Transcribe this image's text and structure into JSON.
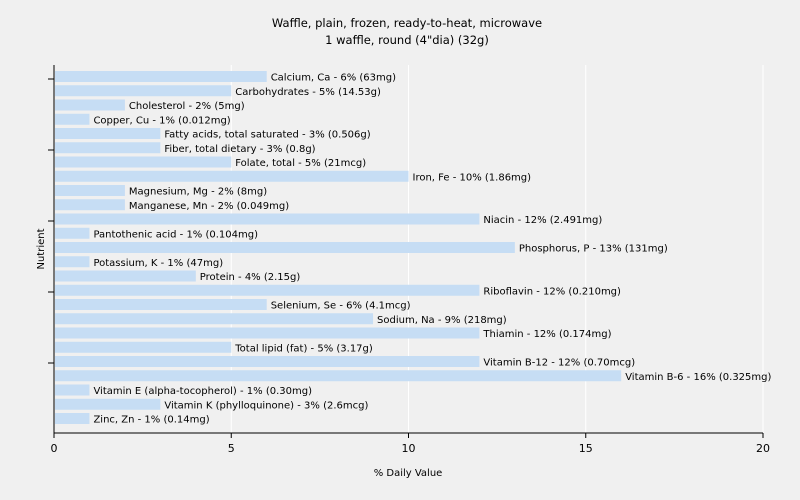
{
  "chart_data": {
    "type": "bar",
    "orientation": "horizontal",
    "title": "Waffle, plain, frozen, ready-to-heat, microwave",
    "subtitle": "1 waffle, round (4\"dia) (32g)",
    "xlabel": "% Daily Value",
    "ylabel": "Nutrient",
    "xlim": [
      0,
      20
    ],
    "xticks": [
      "0",
      "5",
      "10",
      "15",
      "20"
    ],
    "grid": true,
    "bar_color": "#c6ddf4",
    "categories": [
      "Calcium, Ca",
      "Carbohydrates",
      "Cholesterol",
      "Copper, Cu",
      "Fatty acids, total saturated",
      "Fiber, total dietary",
      "Folate, total",
      "Iron, Fe",
      "Magnesium, Mg",
      "Manganese, Mn",
      "Niacin",
      "Pantothenic acid",
      "Phosphorus, P",
      "Potassium, K",
      "Protein",
      "Riboflavin",
      "Selenium, Se",
      "Sodium, Na",
      "Thiamin",
      "Total lipid (fat)",
      "Vitamin B-12",
      "Vitamin B-6",
      "Vitamin E (alpha-tocopherol)",
      "Vitamin K (phylloquinone)",
      "Zinc, Zn"
    ],
    "values": [
      6,
      5,
      2,
      1,
      3,
      3,
      5,
      10,
      2,
      2,
      12,
      1,
      13,
      1,
      4,
      12,
      6,
      9,
      12,
      5,
      12,
      16,
      1,
      3,
      1
    ],
    "labels": [
      "Calcium, Ca - 6% (63mg)",
      "Carbohydrates - 5% (14.53g)",
      "Cholesterol - 2% (5mg)",
      "Copper, Cu - 1% (0.012mg)",
      "Fatty acids, total saturated - 3% (0.506g)",
      "Fiber, total dietary - 3% (0.8g)",
      "Folate, total - 5% (21mcg)",
      "Iron, Fe - 10% (1.86mg)",
      "Magnesium, Mg - 2% (8mg)",
      "Manganese, Mn - 2% (0.049mg)",
      "Niacin - 12% (2.491mg)",
      "Pantothenic acid - 1% (0.104mg)",
      "Phosphorus, P - 13% (131mg)",
      "Potassium, K - 1% (47mg)",
      "Protein - 4% (2.15g)",
      "Riboflavin - 12% (0.210mg)",
      "Selenium, Se - 6% (4.1mcg)",
      "Sodium, Na - 9% (218mg)",
      "Thiamin - 12% (0.174mg)",
      "Total lipid (fat) - 5% (3.17g)",
      "Vitamin B-12 - 12% (0.70mcg)",
      "Vitamin B-6 - 16% (0.325mg)",
      "Vitamin E (alpha-tocopherol) - 1% (0.30mg)",
      "Vitamin K (phylloquinone) - 3% (2.6mcg)",
      "Zinc, Zn - 1% (0.14mg)"
    ]
  }
}
